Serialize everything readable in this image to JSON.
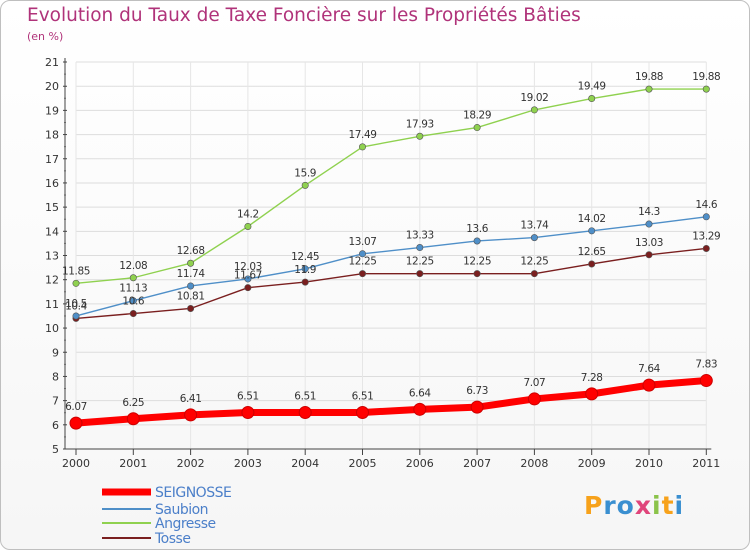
{
  "title": "Evolution du Taux de Taxe Foncière sur les Propriétés Bâties",
  "subtitle": "(en %)",
  "logo": {
    "text": "Proxiti",
    "letters": [
      "P",
      "r",
      "o",
      "x",
      "i",
      "t",
      "i"
    ],
    "colors": [
      "#f7a21b",
      "#3a8fd0",
      "#3a8fd0",
      "#e0457b",
      "#8bc34a",
      "#f7a21b",
      "#3a8fd0"
    ]
  },
  "chart_data": {
    "type": "line",
    "title": "Evolution du Taux de Taxe Foncière sur les Propriétés Bâties",
    "ylabel": "(en %)",
    "xlabel": "",
    "ylim": [
      5,
      21
    ],
    "yticks": [
      5,
      6,
      7,
      8,
      9,
      10,
      11,
      12,
      13,
      14,
      15,
      16,
      17,
      18,
      19,
      20,
      21
    ],
    "grid": true,
    "legend": "bottom-left",
    "x": [
      "2000",
      "2001",
      "2002",
      "2003",
      "2004",
      "2005",
      "2006",
      "2007",
      "2008",
      "2009",
      "2010",
      "2011"
    ],
    "series": [
      {
        "name": "SEIGNOSSE",
        "color": "#ff0000",
        "values": [
          6.07,
          6.25,
          6.41,
          6.51,
          6.51,
          6.51,
          6.64,
          6.73,
          7.07,
          7.28,
          7.64,
          7.83
        ],
        "labels": [
          "6.07",
          "6.25",
          "6.41",
          "6.51",
          "6.51",
          "6.51",
          "6.64",
          "6.73",
          "7.07",
          "7.28",
          "7.64",
          "7.83"
        ]
      },
      {
        "name": "Saubion",
        "color": "#4f8fc8",
        "values": [
          10.5,
          11.13,
          11.74,
          12.03,
          12.45,
          13.07,
          13.33,
          13.6,
          13.74,
          14.02,
          14.3,
          14.6
        ],
        "labels": [
          "10.5",
          "11.13",
          "11.74",
          "12.03",
          "12.45",
          "13.07",
          "13.33",
          "13.6",
          "13.74",
          "14.02",
          "14.3",
          "14.6"
        ]
      },
      {
        "name": "Angresse",
        "color": "#8fd14f",
        "values": [
          11.85,
          12.08,
          12.68,
          14.2,
          15.9,
          17.49,
          17.93,
          18.29,
          19.02,
          19.49,
          19.88,
          19.88
        ],
        "labels": [
          "11.85",
          "12.08",
          "12.68",
          "14.2",
          "15.9",
          "17.49",
          "17.93",
          "18.29",
          "19.02",
          "19.49",
          "19.88",
          "19.88"
        ]
      },
      {
        "name": "Tosse",
        "color": "#7a1f1f",
        "values": [
          10.4,
          10.6,
          10.81,
          11.67,
          11.9,
          12.25,
          12.25,
          12.25,
          12.25,
          12.65,
          13.03,
          13.29
        ],
        "labels": [
          "10.4",
          "10.6",
          "10.81",
          "11.67",
          "11.9",
          "12.25",
          "12.25",
          "12.25",
          "12.25",
          "12.65",
          "13.03",
          "13.29"
        ]
      }
    ]
  }
}
